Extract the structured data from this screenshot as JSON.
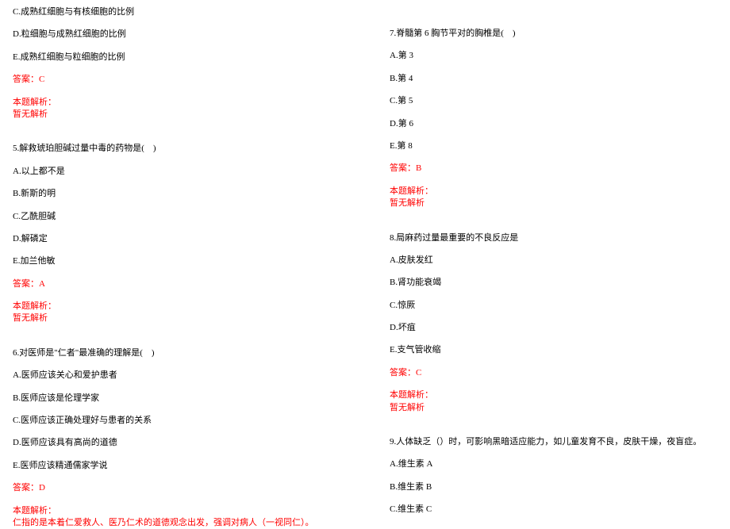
{
  "colors": {
    "text": "#000000",
    "red": "#ff0000",
    "background": "#ffffff"
  },
  "typography": {
    "fontsize": 11,
    "line_spacing": 13
  },
  "left": {
    "q4_continue": {
      "c": "C.成熟红细胞与有核细胞的比例",
      "d": "D.粒细胞与成熟红细胞的比例",
      "e": "E.成熟红细胞与粒细胞的比例",
      "answer": "答案：C",
      "analysis_title": "本题解析：",
      "analysis_body": "暂无解析"
    },
    "q5": {
      "stem": "5.解救琥珀胆碱过量中毒的药物是(　)",
      "a": "A.以上都不是",
      "b": "B.新斯的明",
      "c": "C.乙酰胆碱",
      "d": "D.解磷定",
      "e": "E.加兰他敏",
      "answer": "答案：A",
      "analysis_title": "本题解析：",
      "analysis_body": "暂无解析"
    },
    "q6": {
      "stem": "6.对医师是\"仁者\"最准确的理解是(　)",
      "a": "A.医师应该关心和爱护患者",
      "b": "B.医师应该是伦理学家",
      "c": "C.医师应该正确处理好与患者的关系",
      "d": "D.医师应该具有高尚的道德",
      "e": "E.医师应该精通儒家学说",
      "answer": "答案：D",
      "analysis_title": "本题解析：",
      "analysis_body": "仁指的是本着仁爱救人、医乃仁术的道德观念出发，强调对病人（一视同仁）。"
    }
  },
  "right": {
    "q7": {
      "stem": "7.脊髓第 6 胸节平对的胸椎是(　)",
      "a": "A.第 3",
      "b": "B.第 4",
      "c": "C.第 5",
      "d": "D.第 6",
      "e": "E.第 8",
      "answer": "答案：B",
      "analysis_title": "本题解析：",
      "analysis_body": "暂无解析"
    },
    "q8": {
      "stem": "8.局麻药过量最重要的不良反应是",
      "a": "A.皮肤发红",
      "b": "B.肾功能衰竭",
      "c": "C.惊厥",
      "d": "D.坏疽",
      "e": "E.支气管收缩",
      "answer": "答案：C",
      "analysis_title": "本题解析：",
      "analysis_body": "暂无解析"
    },
    "q9": {
      "stem": "9.人体缺乏（）时，可影响黑暗适应能力，如儿童发育不良，皮肤干燥，夜盲症。",
      "a": "A.维生素 A",
      "b": "B.维生素 B",
      "c": "C.维生素 C"
    }
  }
}
